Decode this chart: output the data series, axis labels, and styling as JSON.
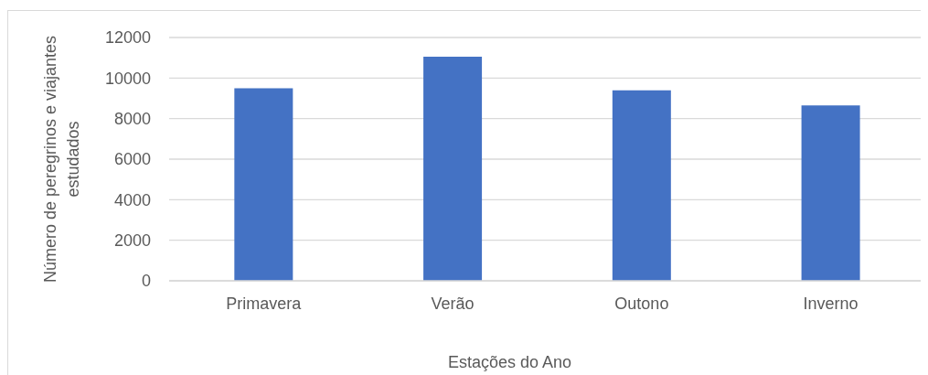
{
  "chart_data": {
    "type": "bar",
    "xlabel": "Estações do Ano",
    "ylabel": "Número de peregrinos e viajantes estudados",
    "categories": [
      "Primavera",
      "Verão",
      "Outono",
      "Inverno"
    ],
    "values": [
      9500,
      11050,
      9400,
      8650
    ],
    "color": "#4472c4",
    "ylim": [
      0,
      12000
    ],
    "yticks": [
      0,
      2000,
      4000,
      6000,
      8000,
      10000,
      12000
    ],
    "grid": "y"
  }
}
